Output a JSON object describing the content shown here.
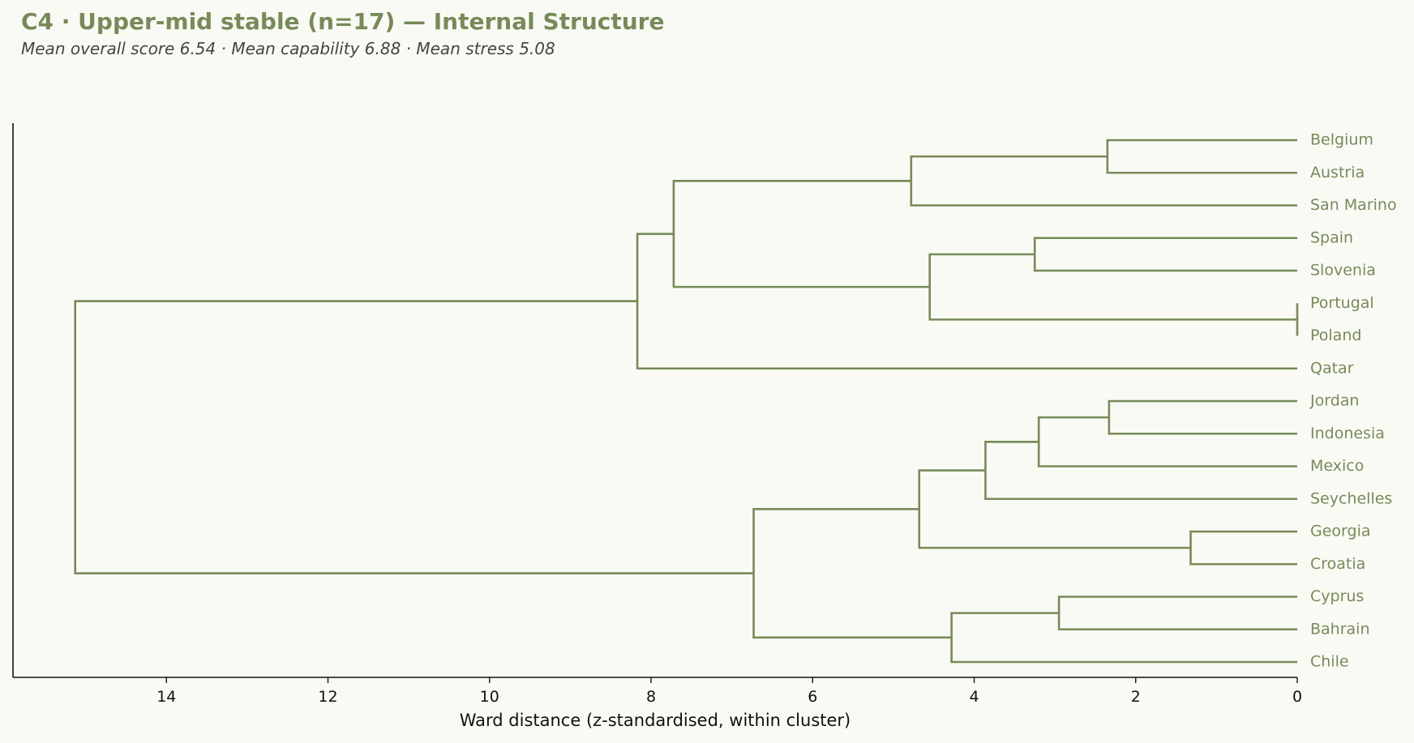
{
  "header": {
    "title": "C4 · Upper-mid stable (n=17) — Internal Structure",
    "subtitle": "Mean overall score 6.54  ·  Mean capability 6.88  ·  Mean stress 5.08"
  },
  "colors": {
    "accent": "#778a59",
    "axis": "#111111",
    "background": "#fafaf5"
  },
  "chart_data": {
    "type": "dendrogram",
    "orientation": "left",
    "xlabel": "Ward distance (z-standardised, within cluster)",
    "xticks": [
      14,
      12,
      10,
      8,
      6,
      4,
      2,
      0
    ],
    "xlim": [
      15.9,
      0
    ],
    "leaves": [
      "Belgium",
      "Austria",
      "San Marino",
      "Spain",
      "Slovenia",
      "Portugal",
      "Poland",
      "Qatar",
      "Jordan",
      "Indonesia",
      "Mexico",
      "Seychelles",
      "Georgia",
      "Croatia",
      "Cyprus",
      "Bahrain",
      "Chile"
    ],
    "merges": [
      {
        "id": "m1",
        "a": "Belgium",
        "b": "Austria",
        "height": 2.35
      },
      {
        "id": "m2",
        "a": "m1",
        "b": "San Marino",
        "height": 4.78
      },
      {
        "id": "m3",
        "a": "Spain",
        "b": "Slovenia",
        "height": 3.25
      },
      {
        "id": "m4",
        "a": "Portugal",
        "b": "Poland",
        "height": 0.0
      },
      {
        "id": "m5",
        "a": "m3",
        "b": "m4",
        "height": 4.55
      },
      {
        "id": "m6",
        "a": "m2",
        "b": "m5",
        "height": 7.72
      },
      {
        "id": "m7",
        "a": "m6",
        "b": "Qatar",
        "height": 8.17
      },
      {
        "id": "m8",
        "a": "Jordan",
        "b": "Indonesia",
        "height": 2.33
      },
      {
        "id": "m9",
        "a": "m8",
        "b": "Mexico",
        "height": 3.2
      },
      {
        "id": "m10",
        "a": "m9",
        "b": "Seychelles",
        "height": 3.86
      },
      {
        "id": "m11",
        "a": "Georgia",
        "b": "Croatia",
        "height": 1.32
      },
      {
        "id": "m12",
        "a": "m10",
        "b": "m11",
        "height": 4.68
      },
      {
        "id": "m13",
        "a": "Cyprus",
        "b": "Bahrain",
        "height": 2.95
      },
      {
        "id": "m14",
        "a": "m13",
        "b": "Chile",
        "height": 4.28
      },
      {
        "id": "m15",
        "a": "m12",
        "b": "m14",
        "height": 6.73
      },
      {
        "id": "m16",
        "a": "m7",
        "b": "m15",
        "height": 15.13
      }
    ]
  }
}
